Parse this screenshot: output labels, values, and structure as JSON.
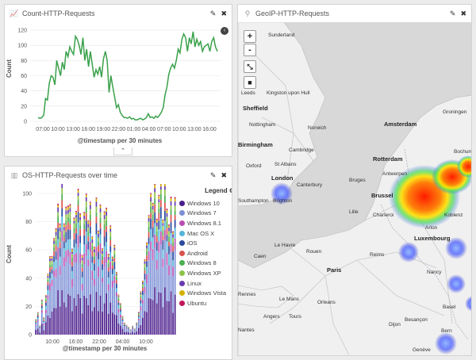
{
  "panels": {
    "count": {
      "title": "Count-HTTP-Requests",
      "edit_icon": "pencil-icon",
      "close_icon": "close-icon"
    },
    "os": {
      "title": "OS-HTTP-Requests over time",
      "edit_icon": "pencil-icon",
      "close_icon": "close-icon"
    },
    "geo": {
      "title": "GeoIP-HTTP-Requests",
      "edit_icon": "pencil-icon",
      "close_icon": "close-icon"
    }
  },
  "colors": {
    "line": "#3aa14b",
    "heat_high": "#ff2a00",
    "heat_low": "#4b6cff",
    "legend_arrow": "#444"
  },
  "chart_data": [
    {
      "type": "line",
      "title": "",
      "xlabel": "@timestamp per 30 minutes",
      "ylabel": "Count",
      "ylim": [
        0,
        120
      ],
      "yticks": [
        "0",
        "20",
        "40",
        "60",
        "80",
        "100",
        "120"
      ],
      "xticks": [
        "07:00",
        "10:00",
        "13:00",
        "16:00",
        "19:00",
        "22:00",
        "01:00",
        "04:00",
        "07:00",
        "10:00",
        "13:00",
        "16:00"
      ],
      "values": [
        5,
        4,
        5,
        8,
        30,
        28,
        50,
        60,
        58,
        48,
        80,
        70,
        60,
        78,
        68,
        92,
        85,
        98,
        92,
        88,
        112,
        108,
        100,
        88,
        110,
        80,
        95,
        72,
        92,
        75,
        58,
        68,
        62,
        72,
        58,
        82,
        92,
        80,
        38,
        60,
        45,
        32,
        18,
        22,
        12,
        8,
        5,
        5,
        4,
        6,
        3,
        4,
        2,
        2,
        3,
        4,
        2,
        3,
        5,
        10,
        5,
        6,
        4,
        7,
        5,
        8,
        12,
        18,
        35,
        45,
        62,
        70,
        75,
        70,
        80,
        95,
        90,
        108,
        115,
        110,
        92,
        110,
        102,
        118,
        98,
        108,
        100,
        105,
        92,
        98,
        100,
        102,
        92,
        105,
        110,
        98,
        92
      ],
      "grid": true
    },
    {
      "type": "bar",
      "stacked": true,
      "title": "",
      "xlabel": "@timestamp per 30 minutes",
      "ylabel": "Count",
      "ylim": [
        0,
        100
      ],
      "yticks": [
        "0",
        "20",
        "40",
        "60",
        "80",
        "100"
      ],
      "xticks": [
        "10:00",
        "16:00",
        "22:00",
        "04:00",
        "10:00"
      ],
      "legend_title": "Legend",
      "legend_placement": "right",
      "series": [
        {
          "name": "Windows 10",
          "color": "#4a1d8c"
        },
        {
          "name": "Windows 7",
          "color": "#7b8fd6"
        },
        {
          "name": "Windows 8.1",
          "color": "#b94fb3"
        },
        {
          "name": "Mac OS X",
          "color": "#54b4d9"
        },
        {
          "name": "iOS",
          "color": "#2b4a9f"
        },
        {
          "name": "Android",
          "color": "#d9534f"
        },
        {
          "name": "Windows 8",
          "color": "#4caf50"
        },
        {
          "name": "Windows XP",
          "color": "#8bc34a"
        },
        {
          "name": "Linux",
          "color": "#6a3ab2"
        },
        {
          "name": "Windows Vista",
          "color": "#d4b106"
        },
        {
          "name": "Ubuntu",
          "color": "#c2185b"
        }
      ],
      "totals": [
        10,
        14,
        6,
        22,
        12,
        28,
        40,
        55,
        48,
        62,
        70,
        90,
        78,
        100,
        68,
        88,
        84,
        92,
        60,
        74,
        82,
        90,
        78,
        66,
        80,
        88,
        74,
        82,
        68,
        60,
        92,
        72,
        80,
        56,
        78,
        84,
        62,
        70,
        48,
        60,
        40,
        28,
        22,
        12,
        8,
        6,
        5,
        4,
        6,
        4,
        8,
        14,
        30,
        36,
        52,
        64,
        74,
        92,
        82,
        98,
        100,
        90,
        94,
        76,
        96,
        88,
        78,
        90,
        72,
        84
      ]
    }
  ],
  "map": {
    "zoom_in": "+",
    "zoom_out": "-",
    "cities": [
      {
        "name": "Sunderland",
        "major": false
      },
      {
        "name": "Leeds",
        "major": false
      },
      {
        "name": "Kingston upon Hull",
        "major": false
      },
      {
        "name": "Sheffield",
        "major": true
      },
      {
        "name": "Nottingham",
        "major": false
      },
      {
        "name": "Norwich",
        "major": false
      },
      {
        "name": "Birmingham",
        "major": true
      },
      {
        "name": "Cambridge",
        "major": false
      },
      {
        "name": "Oxford",
        "major": false
      },
      {
        "name": "St Albans",
        "major": false
      },
      {
        "name": "London",
        "major": true
      },
      {
        "name": "Canterbury",
        "major": false
      },
      {
        "name": "Southampton",
        "major": false
      },
      {
        "name": "Brighton",
        "major": false
      },
      {
        "name": "Groningen",
        "major": false
      },
      {
        "name": "Amsterdam",
        "major": true
      },
      {
        "name": "Rotterdam",
        "major": true
      },
      {
        "name": "Antwerpen",
        "major": false
      },
      {
        "name": "Bruges",
        "major": false
      },
      {
        "name": "Brussel",
        "major": true
      },
      {
        "name": "Lille",
        "major": false
      },
      {
        "name": "Charleroi",
        "major": false
      },
      {
        "name": "Luxembourg",
        "major": true
      },
      {
        "name": "Le Havre",
        "major": false
      },
      {
        "name": "Rouen",
        "major": false
      },
      {
        "name": "Caen",
        "major": false
      },
      {
        "name": "Reims",
        "major": false
      },
      {
        "name": "Paris",
        "major": true
      },
      {
        "name": "Rennes",
        "major": false
      },
      {
        "name": "Le Mans",
        "major": false
      },
      {
        "name": "Orleans",
        "major": false
      },
      {
        "name": "Tours",
        "major": false
      },
      {
        "name": "Angers",
        "major": false
      },
      {
        "name": "Nantes",
        "major": false
      },
      {
        "name": "Dijon",
        "major": false
      },
      {
        "name": "Nancy",
        "major": false
      },
      {
        "name": "Basel",
        "major": false
      },
      {
        "name": "Bern",
        "major": false
      },
      {
        "name": "Besançon",
        "major": false
      },
      {
        "name": "Genève",
        "major": false
      },
      {
        "name": "Lyon",
        "major": false
      },
      {
        "name": "Clermont-Ferrand",
        "major": false
      },
      {
        "name": "Limoges",
        "major": false
      },
      {
        "name": "Arlon",
        "major": false
      },
      {
        "name": "Koblenz",
        "major": false
      },
      {
        "name": "Bochum",
        "major": false
      }
    ]
  }
}
